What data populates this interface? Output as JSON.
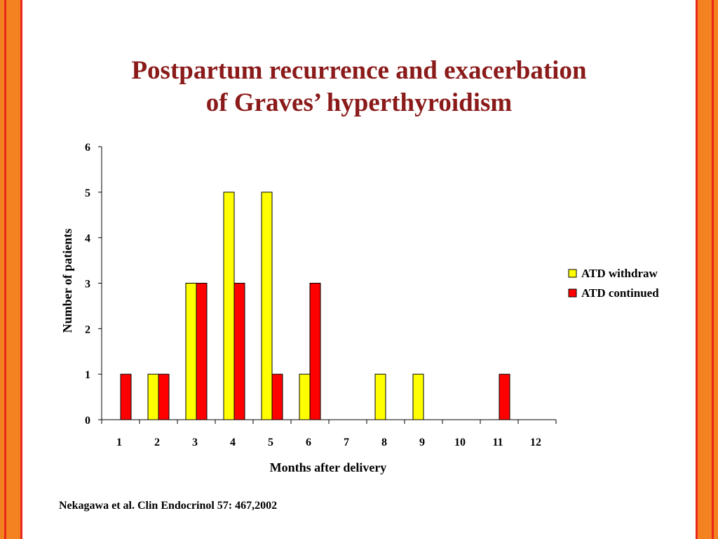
{
  "slide": {
    "title_line1": "Postpartum recurrence and exacerbation",
    "title_line2": "of Graves’ hyperthyroidism",
    "citation": "Nekagawa et al. Clin Endocrinol 57: 467,2002"
  },
  "colors": {
    "title": "#8B1A1A",
    "border_orange": "#F58220",
    "border_red": "#E8291C",
    "series_withdraw": "#FFFF00",
    "series_continued": "#FF0000"
  },
  "chart_data": {
    "type": "bar",
    "xlabel": "Months after delivery",
    "ylabel": "Number of patients",
    "categories": [
      "1",
      "2",
      "3",
      "4",
      "5",
      "6",
      "7",
      "8",
      "9",
      "10",
      "11",
      "12"
    ],
    "ylim": [
      0,
      6
    ],
    "yticks": [
      "0",
      "1",
      "2",
      "3",
      "4",
      "5",
      "6"
    ],
    "grid": false,
    "legend_position": "right",
    "series": [
      {
        "name": "ATD withdraw",
        "color": "#FFFF00",
        "values": [
          0,
          1,
          3,
          5,
          5,
          1,
          0,
          1,
          1,
          0,
          0,
          0
        ]
      },
      {
        "name": "ATD continued",
        "color": "#FF0000",
        "values": [
          1,
          1,
          3,
          3,
          1,
          3,
          0,
          0,
          0,
          0,
          1,
          0
        ]
      }
    ]
  }
}
